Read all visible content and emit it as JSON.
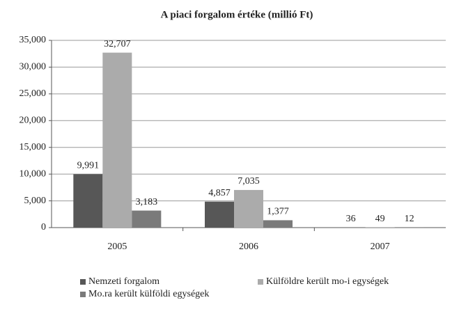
{
  "chart_data": {
    "type": "bar",
    "title": "A piaci forgalom értéke (millió Ft)",
    "categories": [
      "2005",
      "2006",
      "2007"
    ],
    "series": [
      {
        "name": "Nemzeti forgalom",
        "color": "#575757",
        "values": [
          9991,
          4857,
          36
        ],
        "value_labels": [
          "9,991",
          "4,857",
          "36"
        ]
      },
      {
        "name": "Külföldre került mo-i egységek",
        "color": "#ababab",
        "values": [
          32707,
          7035,
          49
        ],
        "value_labels": [
          "32,707",
          "7,035",
          "49"
        ]
      },
      {
        "name": "Mo.ra került külföldi egységek",
        "color": "#7a7a7a",
        "values": [
          3183,
          1377,
          12
        ],
        "value_labels": [
          "3,183",
          "1,377",
          "12"
        ]
      }
    ],
    "ylim": [
      0,
      35000
    ],
    "yticks": [
      0,
      {
        "value": 5000,
        "label": "5,000"
      },
      {
        "value": 10000,
        "label": "10,000"
      },
      {
        "value": 15000,
        "label": "15,000"
      },
      {
        "value": 20000,
        "label": "20,000"
      },
      {
        "value": 25000,
        "label": "25,000"
      },
      {
        "value": 30000,
        "label": "30,000"
      },
      {
        "value": 35000,
        "label": "35,000"
      }
    ],
    "grid": true,
    "legend": "bottom"
  }
}
